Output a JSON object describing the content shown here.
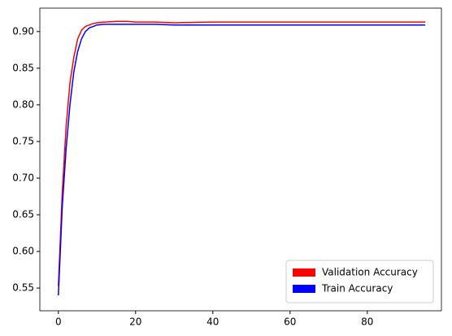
{
  "chart_data": {
    "type": "line",
    "x": [
      0,
      1,
      2,
      3,
      4,
      5,
      6,
      7,
      8,
      9,
      10,
      12,
      15,
      18,
      20,
      25,
      30,
      40,
      50,
      60,
      70,
      80,
      90,
      95
    ],
    "series": [
      {
        "name": "Validation Accuracy",
        "color": "#ff0000",
        "values": [
          0.553,
          0.68,
          0.77,
          0.83,
          0.865,
          0.89,
          0.902,
          0.907,
          0.909,
          0.911,
          0.912,
          0.913,
          0.914,
          0.914,
          0.913,
          0.913,
          0.912,
          0.913,
          0.913,
          0.913,
          0.913,
          0.913,
          0.913,
          0.913
        ]
      },
      {
        "name": "Train Accuracy",
        "color": "#0000ff",
        "values": [
          0.54,
          0.66,
          0.74,
          0.8,
          0.845,
          0.873,
          0.89,
          0.9,
          0.905,
          0.907,
          0.909,
          0.91,
          0.91,
          0.91,
          0.91,
          0.91,
          0.909,
          0.909,
          0.909,
          0.909,
          0.909,
          0.909,
          0.909,
          0.909
        ]
      }
    ],
    "xlim": [
      -4.8,
      99.2
    ],
    "ylim": [
      0.519,
      0.932
    ],
    "xticks": [
      0,
      20,
      40,
      60,
      80
    ],
    "yticks": [
      0.55,
      {
        "value": 0.6,
        "label": "0.60"
      },
      0.65,
      {
        "value": 0.7,
        "label": "0.70"
      },
      0.75,
      {
        "value": 0.8,
        "label": "0.80"
      },
      0.85,
      {
        "value": 0.9,
        "label": "0.90"
      }
    ],
    "grid": false,
    "legend": "lower right"
  }
}
